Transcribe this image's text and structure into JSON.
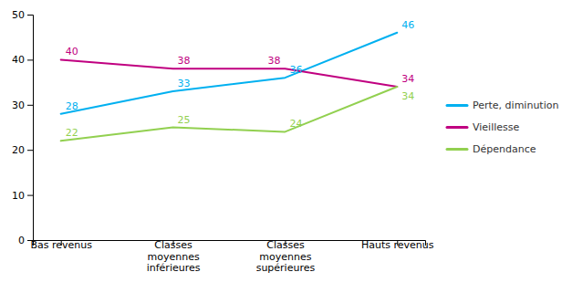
{
  "chart_data": {
    "type": "line",
    "categories": [
      "Bas revenus",
      "Classes\nmoyennes\ninférieures",
      "Classes\nmoyennes\nsupérieures",
      "Hauts revenus"
    ],
    "series": [
      {
        "name": "Perte, diminution",
        "values": [
          28,
          33,
          36,
          46
        ],
        "color": "#00b0f0"
      },
      {
        "name": "Vieillesse",
        "values": [
          40,
          38,
          38,
          34
        ],
        "color": "#c00080"
      },
      {
        "name": "Dépendance",
        "values": [
          22,
          25,
          24,
          34
        ],
        "color": "#92d050"
      }
    ],
    "ylim": [
      0,
      50
    ],
    "yticks": [
      0,
      10,
      20,
      30,
      40,
      50
    ],
    "grid": false,
    "legend": "right",
    "data_labels": true
  }
}
